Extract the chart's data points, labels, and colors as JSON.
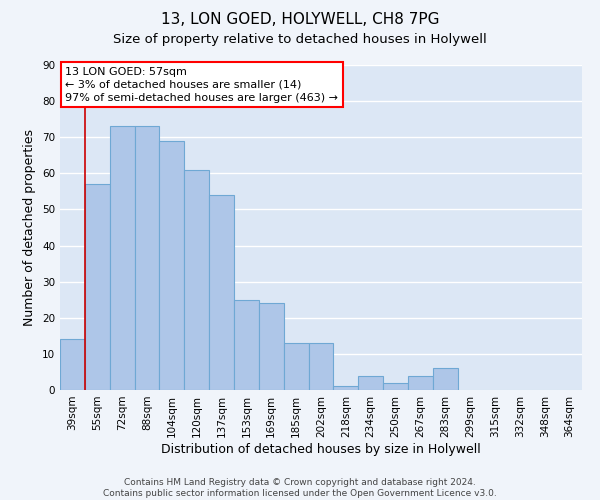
{
  "title1": "13, LON GOED, HOLYWELL, CH8 7PG",
  "title2": "Size of property relative to detached houses in Holywell",
  "xlabel": "Distribution of detached houses by size in Holywell",
  "ylabel": "Number of detached properties",
  "categories": [
    "39sqm",
    "55sqm",
    "72sqm",
    "88sqm",
    "104sqm",
    "120sqm",
    "137sqm",
    "153sqm",
    "169sqm",
    "185sqm",
    "202sqm",
    "218sqm",
    "234sqm",
    "250sqm",
    "267sqm",
    "283sqm",
    "299sqm",
    "315sqm",
    "332sqm",
    "348sqm",
    "364sqm"
  ],
  "values": [
    14,
    57,
    73,
    73,
    69,
    61,
    54,
    25,
    24,
    13,
    13,
    1,
    4,
    2,
    4,
    6,
    0,
    0,
    0,
    0,
    0
  ],
  "bar_color": "#aec6e8",
  "bar_edge_color": "#6fa8d4",
  "fig_background_color": "#f0f4fa",
  "ax_background_color": "#dce7f5",
  "grid_color": "#ffffff",
  "red_line_x": 0.5,
  "annotation_box_text": "13 LON GOED: 57sqm\n← 3% of detached houses are smaller (14)\n97% of semi-detached houses are larger (463) →",
  "ylim": [
    0,
    90
  ],
  "footer_text": "Contains HM Land Registry data © Crown copyright and database right 2024.\nContains public sector information licensed under the Open Government Licence v3.0.",
  "title_fontsize": 11,
  "subtitle_fontsize": 9.5,
  "axis_label_fontsize": 9,
  "tick_fontsize": 7.5,
  "footer_fontsize": 6.5
}
